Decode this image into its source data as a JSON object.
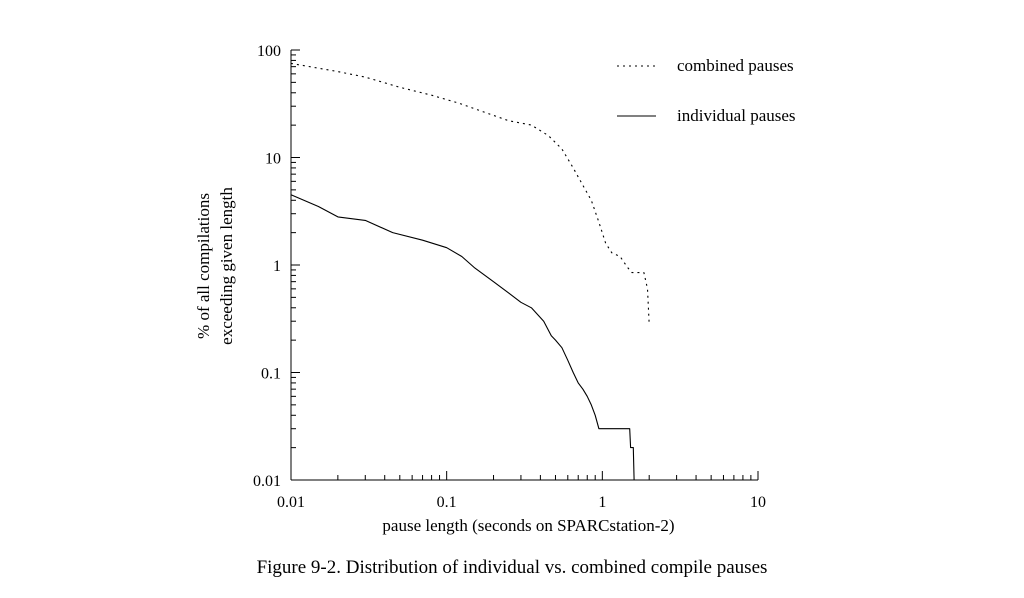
{
  "caption": "Figure 9-2.  Distribution of individual vs. combined compile pauses",
  "chart_data": {
    "type": "line",
    "xscale": "log",
    "yscale": "log",
    "xlim": [
      0.01,
      10
    ],
    "ylim": [
      0.01,
      100
    ],
    "xlabel": "pause length (seconds on SPARCstation-2)",
    "ylabel": [
      "% of all compilations",
      "exceeding given length"
    ],
    "x_ticks": [
      {
        "value": 0.01,
        "label": "0.01"
      },
      {
        "value": 0.1,
        "label": "0.1"
      },
      {
        "value": 1,
        "label": "1"
      },
      {
        "value": 10,
        "label": "10"
      }
    ],
    "y_ticks": [
      {
        "value": 100,
        "label": "100"
      },
      {
        "value": 10,
        "label": "10"
      },
      {
        "value": 1,
        "label": "1"
      },
      {
        "value": 0.1,
        "label": "0.1"
      },
      {
        "value": 0.01,
        "label": "0.01"
      }
    ],
    "legend_position": "top-right",
    "grid": false,
    "series": [
      {
        "name": "combined pauses",
        "style": "dotted",
        "x": [
          0.01,
          0.02,
          0.03,
          0.05,
          0.08,
          0.12,
          0.18,
          0.25,
          0.35,
          0.45,
          0.55,
          0.65,
          0.75,
          0.85,
          0.95,
          1.05,
          1.15,
          1.3,
          1.45,
          1.55,
          1.7,
          1.85,
          1.95,
          2.0
        ],
        "y": [
          75,
          63,
          56,
          45,
          38,
          32,
          26,
          22,
          20,
          16,
          12,
          8,
          5.5,
          4,
          2.5,
          1.6,
          1.3,
          1.2,
          0.95,
          0.85,
          0.85,
          0.85,
          0.6,
          0.28
        ]
      },
      {
        "name": "individual pauses",
        "style": "solid",
        "x": [
          0.01,
          0.015,
          0.02,
          0.03,
          0.045,
          0.07,
          0.1,
          0.125,
          0.15,
          0.2,
          0.25,
          0.3,
          0.35,
          0.42,
          0.47,
          0.5,
          0.55,
          0.6,
          0.65,
          0.7,
          0.75,
          0.8,
          0.85,
          0.9,
          0.95,
          1.0,
          1.3,
          1.5,
          1.52,
          1.58,
          1.6
        ],
        "y": [
          4.5,
          3.5,
          2.8,
          2.6,
          2.0,
          1.7,
          1.45,
          1.2,
          0.95,
          0.7,
          0.55,
          0.45,
          0.4,
          0.3,
          0.22,
          0.2,
          0.17,
          0.13,
          0.1,
          0.08,
          0.07,
          0.06,
          0.05,
          0.04,
          0.03,
          0.03,
          0.03,
          0.03,
          0.02,
          0.02,
          0.01
        ]
      }
    ]
  }
}
